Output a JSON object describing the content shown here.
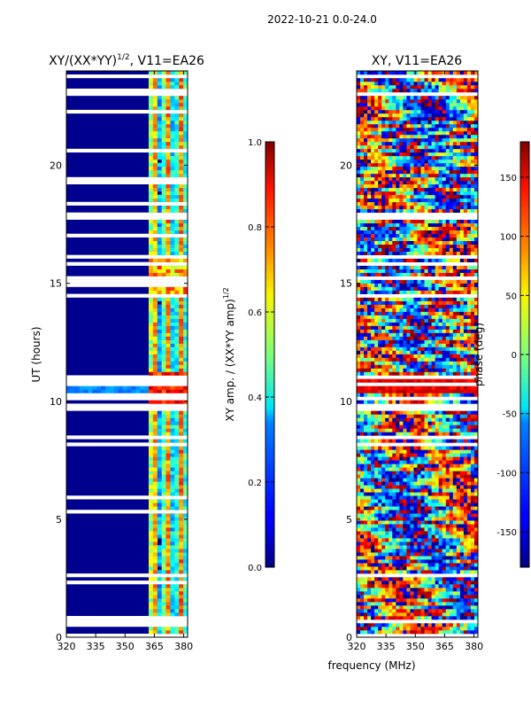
{
  "figure_title": "2022-10-21 0.0-24.0",
  "shared_xlabel": "frequency (MHz)",
  "chart_data": [
    {
      "type": "heatmap",
      "title_prefix": "XY/(XX*YY)",
      "title_exp": "1/2",
      "title_suffix": ", V11=EA26",
      "xlabel": "frequency (MHz)",
      "ylabel": "UT (hours)",
      "xlim": [
        320,
        382
      ],
      "ylim": [
        0,
        24
      ],
      "x_ticks": [
        320,
        335,
        350,
        365,
        380
      ],
      "y_ticks": [
        0,
        5,
        10,
        15,
        20
      ],
      "colormap": "jet",
      "colorbar": {
        "label_prefix": "XY amp. / (XX*YY amp)",
        "label_exp": "1/2",
        "range": [
          0.0,
          1.0
        ],
        "ticks": [
          "0.0",
          "0.2",
          "0.4",
          "0.6",
          "0.8",
          "1.0"
        ]
      }
    },
    {
      "type": "heatmap",
      "title": "XY, V11=EA26",
      "xlabel": "frequency (MHz)",
      "ylabel": "",
      "xlim": [
        320,
        382
      ],
      "ylim": [
        0,
        24
      ],
      "x_ticks": [
        320,
        335,
        350,
        365,
        380
      ],
      "y_ticks": [
        0,
        5,
        10,
        15,
        20
      ],
      "colormap": "jet",
      "colorbar": {
        "label": "phase (deg)",
        "range": [
          -180,
          180
        ],
        "ticks": [
          -150,
          -100,
          -50,
          0,
          50,
          100,
          150
        ]
      }
    }
  ],
  "colors": {
    "jet_low": "#00007f",
    "jet_high": "#7f0000",
    "flag_gap": "#ffffff"
  }
}
